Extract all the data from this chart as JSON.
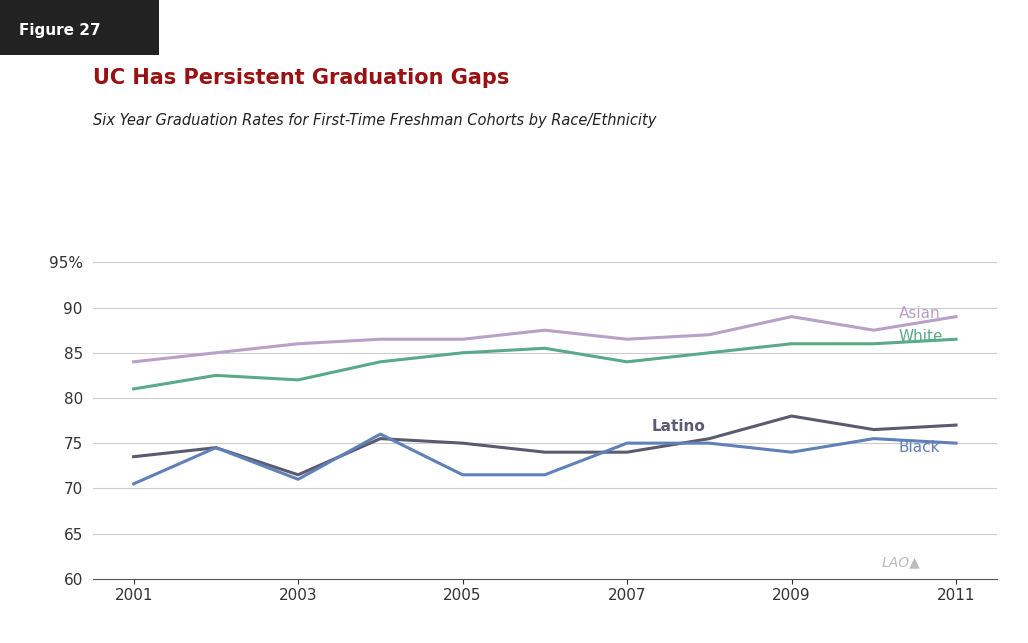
{
  "title": "UC Has Persistent Graduation Gaps",
  "subtitle": "Six Year Graduation Rates for First-Time Freshman Cohorts by Race/Ethnicity",
  "figure_label": "Figure 27",
  "ylim": [
    60,
    97
  ],
  "yticks": [
    60,
    65,
    70,
    75,
    80,
    85,
    90,
    95
  ],
  "xticks": [
    2001,
    2003,
    2005,
    2007,
    2009,
    2011
  ],
  "xlim": [
    2000.5,
    2011.5
  ],
  "years": [
    2001,
    2002,
    2003,
    2004,
    2005,
    2006,
    2007,
    2008,
    2009,
    2010,
    2011
  ],
  "asian": [
    84,
    85,
    86,
    86.5,
    86.5,
    87.5,
    86.5,
    87,
    89,
    87.5,
    89
  ],
  "white": [
    81,
    82.5,
    82,
    84,
    85,
    85.5,
    84,
    85,
    86,
    86,
    86.5
  ],
  "latino": [
    73.5,
    74.5,
    71.5,
    75.5,
    75,
    74,
    74,
    75.5,
    78,
    76.5,
    77
  ],
  "black": [
    70.5,
    74.5,
    71,
    76,
    71.5,
    71.5,
    75,
    75,
    74,
    75.5,
    75
  ],
  "asian_color": "#b8a0c8",
  "white_color": "#5aaa8a",
  "latino_color": "#5a5a70",
  "black_color": "#6080b8",
  "line_width": 2.2,
  "title_color": "#991111",
  "subtitle_color": "#222222",
  "bg_color": "#ffffff",
  "grid_color": "#cccccc",
  "label_asian": "Asian",
  "label_white": "White",
  "label_latino": "Latino",
  "label_black": "Black",
  "fig_label_bg": "#222222",
  "fig_label_text_color": "#ffffff",
  "lao_color": "#bbbbbb"
}
